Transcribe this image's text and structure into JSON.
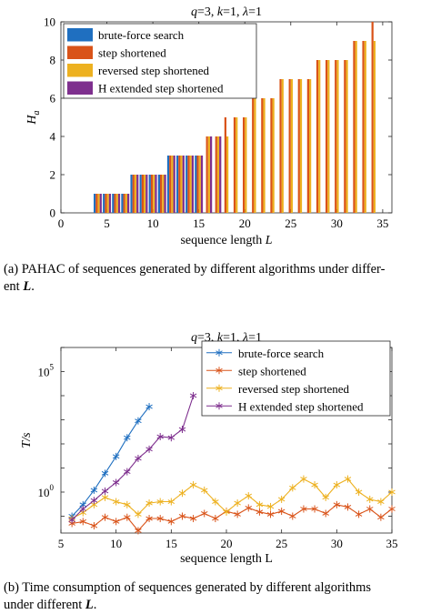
{
  "chart_data": [
    {
      "type": "bar",
      "title": "q=3, k=1, λ=1",
      "xlabel": "sequence length L",
      "ylabel": "H_a",
      "xlim": [
        0,
        36
      ],
      "ylim": [
        0,
        10
      ],
      "xticks": [
        "0",
        "5",
        "10",
        "15",
        "20",
        "25",
        "30",
        "35"
      ],
      "yticks": [
        "0",
        "2",
        "4",
        "6",
        "8",
        "10"
      ],
      "legend_position": "top-left",
      "categories": [
        4,
        5,
        6,
        7,
        8,
        9,
        10,
        11,
        12,
        13,
        14,
        15,
        16,
        17,
        18,
        19,
        20,
        21,
        22,
        23,
        24,
        25,
        26,
        27,
        28,
        29,
        30,
        31,
        32,
        33,
        34,
        35
      ],
      "series": [
        {
          "name": "brute-force search",
          "color": "#1f6fc0",
          "values": [
            1,
            1,
            1,
            1,
            2,
            2,
            2,
            2,
            3,
            3,
            3,
            3,
            null,
            null,
            null,
            null,
            null,
            null,
            null,
            null,
            null,
            null,
            null,
            null,
            null,
            null,
            null,
            null,
            null,
            null,
            null,
            null
          ]
        },
        {
          "name": "step shortened",
          "color": "#d95319",
          "values": [
            1,
            1,
            1,
            1,
            2,
            2,
            2,
            2,
            3,
            3,
            3,
            3,
            4,
            4,
            5,
            5,
            5,
            6,
            6,
            6,
            7,
            7,
            7,
            7,
            8,
            8,
            8,
            8,
            9,
            9,
            10,
            null
          ]
        },
        {
          "name": "reversed step shortened",
          "color": "#edb120",
          "values": [
            1,
            1,
            1,
            1,
            2,
            2,
            2,
            2,
            3,
            3,
            3,
            3,
            4,
            4,
            4,
            5,
            5,
            6,
            6,
            6,
            7,
            7,
            7,
            7,
            8,
            8,
            8,
            8,
            9,
            9,
            9,
            null
          ]
        },
        {
          "name": "H extended step shortened",
          "color": "#7e2f8e",
          "values": [
            1,
            1,
            1,
            1,
            2,
            2,
            2,
            2,
            3,
            3,
            3,
            3,
            4,
            4,
            null,
            null,
            null,
            null,
            null,
            null,
            null,
            null,
            null,
            null,
            null,
            null,
            null,
            null,
            null,
            null,
            null,
            null
          ]
        }
      ]
    },
    {
      "type": "line",
      "title": "q=3, k=1, λ=1",
      "xlabel": "sequence length L",
      "ylabel": "T/s",
      "yscale": "log",
      "xlim": [
        5,
        35
      ],
      "ylim": [
        0.02,
        1000000
      ],
      "xticks": [
        "5",
        "10",
        "15",
        "20",
        "25",
        "30",
        "35"
      ],
      "ytick_labels": [
        {
          "base": "10",
          "exp": "0"
        },
        {
          "base": "10",
          "exp": "5"
        }
      ],
      "legend_position": "top-right",
      "series": [
        {
          "name": "brute-force search",
          "color": "#1f6fc0",
          "x": [
            6,
            7,
            8,
            9,
            10,
            11,
            12,
            13
          ],
          "y": [
            0.1,
            0.3,
            1.2,
            6,
            30,
            180,
            900,
            3500
          ]
        },
        {
          "name": "step shortened",
          "color": "#d95319",
          "x": [
            6,
            7,
            8,
            9,
            10,
            11,
            12,
            13,
            14,
            15,
            16,
            17,
            18,
            19,
            20,
            21,
            22,
            23,
            24,
            25,
            26,
            27,
            28,
            29,
            30,
            31,
            32,
            33,
            34,
            35
          ],
          "y": [
            0.05,
            0.06,
            0.04,
            0.09,
            0.06,
            0.09,
            0.025,
            0.08,
            0.08,
            0.06,
            0.1,
            0.08,
            0.13,
            0.08,
            0.16,
            0.12,
            0.22,
            0.15,
            0.12,
            0.16,
            0.1,
            0.2,
            0.2,
            0.13,
            0.3,
            0.24,
            0.12,
            0.2,
            0.09,
            0.2
          ]
        },
        {
          "name": "reversed step shortened",
          "color": "#edb120",
          "x": [
            6,
            7,
            8,
            9,
            10,
            11,
            12,
            13,
            14,
            15,
            16,
            17,
            18,
            19,
            20,
            21,
            22,
            23,
            24,
            25,
            26,
            27,
            28,
            29,
            30,
            31,
            32,
            33,
            34,
            35
          ],
          "y": [
            0.08,
            0.14,
            0.3,
            0.6,
            0.4,
            0.3,
            0.12,
            0.35,
            0.4,
            0.4,
            0.9,
            2.0,
            1.2,
            0.4,
            0.15,
            0.35,
            0.7,
            0.3,
            0.25,
            0.5,
            1.5,
            3.5,
            2.0,
            0.6,
            2.0,
            3.5,
            1.0,
            0.5,
            0.4,
            1.0
          ]
        },
        {
          "name": "H extended step shortened",
          "color": "#7e2f8e",
          "x": [
            6,
            7,
            8,
            9,
            10,
            11,
            12,
            13,
            14,
            15,
            16,
            17
          ],
          "y": [
            0.07,
            0.2,
            0.45,
            1.1,
            2.5,
            7,
            25,
            60,
            200,
            180,
            400,
            10000
          ]
        }
      ]
    }
  ],
  "captions": {
    "a_prefix": "(a)  PAHAC of sequences generated by different algorithms under differ-",
    "a_line2_start": "ent ",
    "a_var": "L",
    "a_end": ".",
    "b_prefix": "(b)  Time consumption of sequences generated by different algorithms",
    "b_line2_start": "under different ",
    "b_var": "L",
    "b_end": "."
  }
}
